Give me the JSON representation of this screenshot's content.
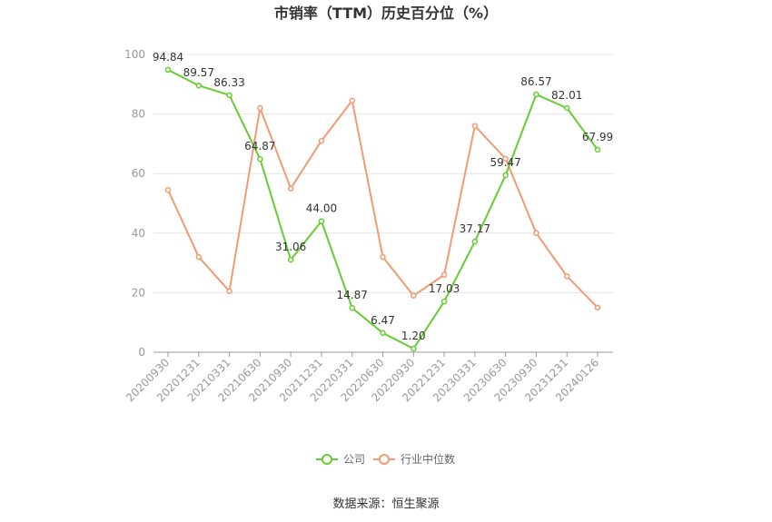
{
  "chart_data": {
    "type": "line",
    "title": "市销率（TTM）历史百分位（%）",
    "source": "数据来源：恒生聚源",
    "x": [
      "20200930",
      "20201231",
      "20210331",
      "20210630",
      "20210930",
      "20211231",
      "20220331",
      "20220630",
      "20220930",
      "20221231",
      "20230331",
      "20230630",
      "20230930",
      "20231231",
      "20240126"
    ],
    "ylim": [
      0,
      100
    ],
    "yticks": [
      0,
      20,
      40,
      60,
      80,
      100
    ],
    "ytick_labels": [
      "0",
      "20",
      "40",
      "60",
      "80",
      "100"
    ],
    "grid": true,
    "legend_position": "bottom",
    "series": [
      {
        "name": "公司",
        "color": "#66cc33",
        "values": [
          94.84,
          89.57,
          86.33,
          64.87,
          31.06,
          44.0,
          14.87,
          6.47,
          1.2,
          17.03,
          37.17,
          59.47,
          86.57,
          82.01,
          67.99
        ],
        "labels": [
          "94.84",
          "89.57",
          "86.33",
          "64.87",
          "31.06",
          "44.00",
          "14.87",
          "6.47",
          "1.20",
          "17.03",
          "37.17",
          "59.47",
          "86.57",
          "82.01",
          "67.99"
        ]
      },
      {
        "name": "行业中位数",
        "color": "#f29a72",
        "values": [
          54.5,
          32.0,
          20.5,
          82.0,
          55.0,
          71.0,
          84.5,
          32.0,
          19.0,
          26.0,
          76.0,
          65.0,
          40.0,
          25.5,
          15.0
        ]
      }
    ]
  }
}
